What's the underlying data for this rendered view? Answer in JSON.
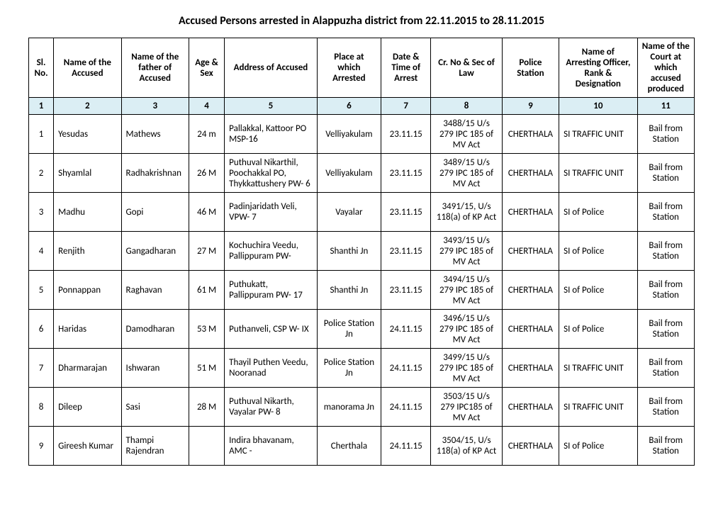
{
  "title": "Accused Persons arrested in   Alappuzha  district from   22.11.2015 to 28.11.2015",
  "headers": {
    "sl": "Sl. No.",
    "name": "Name of the Accused",
    "father": "Name of the father of Accused",
    "age": "Age & Sex",
    "addr": "Address of Accused",
    "place": "Place at which Arrested",
    "date": "Date & Time of Arrest",
    "cr": "Cr. No & Sec of Law",
    "ps": "Police Station",
    "officer": "Name of Arresting Officer, Rank & Designation",
    "court": "Name of the Court at which accused produced"
  },
  "colnums": [
    "1",
    "2",
    "3",
    "4",
    "5",
    "6",
    "7",
    "8",
    "9",
    "10",
    "11"
  ],
  "rows": [
    {
      "sl": "1",
      "name": "Yesudas",
      "father": "Mathews",
      "age": "24 m",
      "addr": "Pallakkal, Kattoor PO MSP-16",
      "place": "Velliyakulam",
      "date": "23.11.15",
      "cr": "3488/15 U/s 279 IPC 185 of MV Act",
      "ps": "CHERTHALA",
      "officer": "SI TRAFFIC UNIT",
      "court": "Bail from Station"
    },
    {
      "sl": "2",
      "name": "Shyamlal",
      "father": "Radhakrishnan",
      "age": "26 M",
      "addr": "Puthuval Nikarthil, Poochakkal PO, Thykkattushery PW- 6",
      "place": "Velliyakulam",
      "date": "23.11.15",
      "cr": "3489/15 U/s 279 IPC 185 of MV Act",
      "ps": "CHERTHALA",
      "officer": "SI TRAFFIC UNIT",
      "court": "Bail from Station"
    },
    {
      "sl": "3",
      "name": "Madhu",
      "father": "Gopi",
      "age": "46 M",
      "addr": "Padinjaridath Veli, VPW- 7",
      "place": "Vayalar",
      "date": "23.11.15",
      "cr": "3491/15, U/s 118(a) of KP Act",
      "ps": "CHERTHALA",
      "officer": "SI of Police",
      "court": "Bail from Station"
    },
    {
      "sl": "4",
      "name": "Renjith",
      "father": "Gangadharan",
      "age": "27 M",
      "addr": "Kochuchira Veedu, Pallippuram PW-",
      "place": "Shanthi Jn",
      "date": "23.11.15",
      "cr": "3493/15 U/s 279 IPC 185 of MV Act",
      "ps": "CHERTHALA",
      "officer": "SI of Police",
      "court": "Bail from Station"
    },
    {
      "sl": "5",
      "name": "Ponnappan",
      "father": "Raghavan",
      "age": "61 M",
      "addr": "Puthukatt, Pallippuram PW- 17",
      "place": "Shanthi Jn",
      "date": "23.11.15",
      "cr": "3494/15 U/s 279 IPC 185 of MV Act",
      "ps": "CHERTHALA",
      "officer": "SI of Police",
      "court": "Bail from Station"
    },
    {
      "sl": "6",
      "name": "Haridas",
      "father": "Damodharan",
      "age": "53 M",
      "addr": "Puthanveli, CSP W- IX",
      "place": "Police Station Jn",
      "date": "24.11.15",
      "cr": "3496/15 U/s 279 IPC 185 of MV Act",
      "ps": "CHERTHALA",
      "officer": "SI of Police",
      "court": "Bail from Station"
    },
    {
      "sl": "7",
      "name": "Dharmarajan",
      "father": "Ishwaran",
      "age": "51 M",
      "addr": "Thayil Puthen Veedu, Nooranad",
      "place": "Police Station Jn",
      "date": "24.11.15",
      "cr": "3499/15 U/s 279 IPC 185 of MV Act",
      "ps": "CHERTHALA",
      "officer": "SI TRAFFIC UNIT",
      "court": "Bail from Station"
    },
    {
      "sl": "8",
      "name": "Dileep",
      "father": "Sasi",
      "age": "28 M",
      "addr": "Puthuval Nikarth, Vayalar PW- 8",
      "place": "manorama Jn",
      "date": "24.11.15",
      "cr": "3503/15 U/s 279 IPC185 of MV Act",
      "ps": "CHERTHALA",
      "officer": "SI TRAFFIC UNIT",
      "court": "Bail from Station"
    },
    {
      "sl": "9",
      "name": "Gireesh Kumar",
      "father": "Thampi Rajendran",
      "age": "",
      "addr": "Indira bhavanam, AMC -",
      "place": "Cherthala",
      "date": "24.11.15",
      "cr": "3504/15, U/s 118(a) of KP Act",
      "ps": "CHERTHALA",
      "officer": "SI of Police",
      "court": "Bail from Station"
    }
  ]
}
